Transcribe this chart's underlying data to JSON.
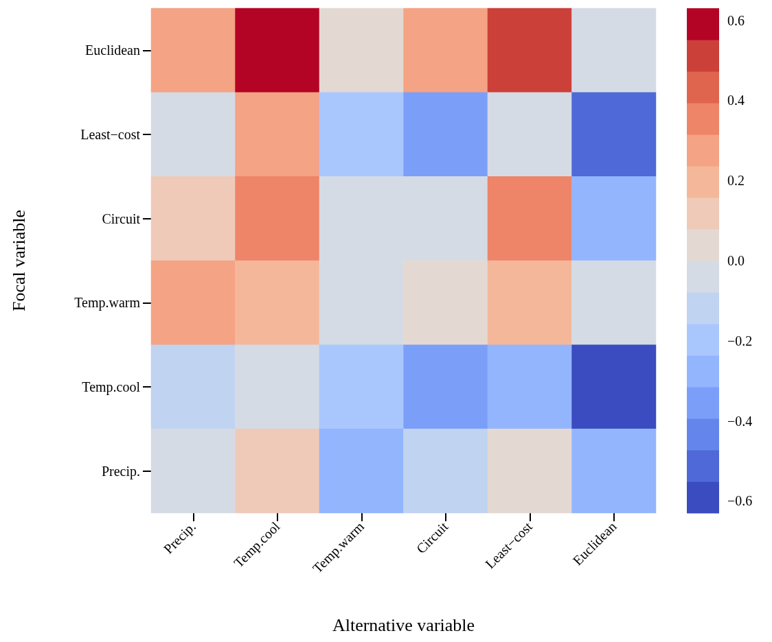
{
  "chart_data": {
    "type": "heatmap",
    "xlabel": "Alternative variable",
    "ylabel": "Focal variable",
    "categories": [
      "Precip.",
      "Temp.cool",
      "Temp.warm",
      "Circuit",
      "Least−cost",
      "Euclidean"
    ],
    "y_categories": [
      "Euclidean",
      "Least−cost",
      "Circuit",
      "Temp.warm",
      "Temp.cool",
      "Precip."
    ],
    "cells": [
      [
        0.28,
        0.59,
        0.04,
        0.28,
        0.51,
        -0.04
      ],
      [
        -0.04,
        0.28,
        -0.2,
        -0.35,
        -0.04,
        -0.51
      ],
      [
        0.12,
        0.35,
        -0.04,
        -0.04,
        0.35,
        -0.28
      ],
      [
        0.28,
        0.2,
        -0.04,
        0.04,
        0.2,
        -0.04
      ],
      [
        -0.12,
        -0.04,
        -0.2,
        -0.35,
        -0.28,
        -0.59
      ],
      [
        -0.04,
        0.12,
        -0.28,
        -0.12,
        0.04,
        -0.28
      ]
    ],
    "clim": [
      -0.63,
      0.63
    ],
    "cticks": [
      {
        "value": -0.6,
        "label": "−0.6"
      },
      {
        "value": -0.4,
        "label": "−0.4"
      },
      {
        "value": -0.2,
        "label": "−0.2"
      },
      {
        "value": 0,
        "label": "0.0"
      },
      {
        "value": 0.2,
        "label": "0.2"
      },
      {
        "value": 0.4,
        "label": "0.4"
      },
      {
        "value": 0.6,
        "label": "0.6"
      }
    ]
  }
}
